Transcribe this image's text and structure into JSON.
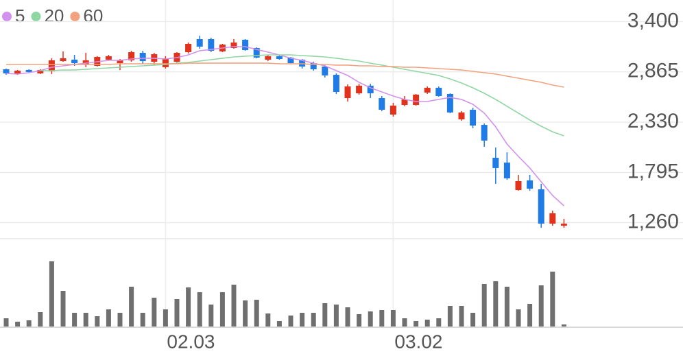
{
  "chart_data": {
    "type": "candlestick",
    "categories": [
      null,
      null,
      null,
      null,
      null,
      null,
      null,
      null,
      null,
      null,
      null,
      null,
      null,
      null,
      "02.03",
      null,
      null,
      null,
      null,
      null,
      null,
      null,
      null,
      null,
      null,
      null,
      null,
      null,
      null,
      null,
      null,
      null,
      null,
      null,
      "03.02",
      null,
      null,
      null,
      null,
      null,
      null,
      null,
      null,
      null,
      null,
      null,
      null,
      null,
      null,
      null
    ],
    "open": [
      2893,
      2842,
      2886,
      2849,
      2871,
      2980,
      2995,
      2944,
      2929,
      2995,
      2958,
      2988,
      3068,
      2973,
      2915,
      2973,
      3075,
      3214,
      3214,
      3083,
      3119,
      3207,
      3119,
      2995,
      3032,
      3017,
      2995,
      2958,
      2922,
      2834,
      2586,
      2637,
      2718,
      2586,
      2411,
      2513,
      2513,
      2645,
      2696,
      2630,
      2360,
      2462,
      2301,
      1951,
      1900,
      1608,
      1710,
      1615,
      1250,
      1228
    ],
    "high": [
      2900,
      2886,
      2893,
      2893,
      3010,
      3083,
      3046,
      3068,
      3032,
      3046,
      3002,
      3090,
      3090,
      3068,
      3032,
      3075,
      3177,
      3250,
      3228,
      3163,
      3214,
      3214,
      3126,
      3046,
      3039,
      3024,
      3002,
      2973,
      2937,
      2849,
      2732,
      2739,
      2739,
      2608,
      2535,
      2608,
      2630,
      2710,
      2710,
      2637,
      2447,
      2484,
      2316,
      2060,
      2009,
      1769,
      1769,
      1674,
      1389,
      1301
    ],
    "low": [
      2834,
      2834,
      2856,
      2842,
      2842,
      2973,
      2929,
      2915,
      2922,
      2988,
      2885,
      2973,
      2951,
      2937,
      2900,
      2966,
      3061,
      3112,
      3075,
      3075,
      3112,
      3090,
      3010,
      2980,
      2995,
      2951,
      2900,
      2878,
      2805,
      2630,
      2550,
      2623,
      2586,
      2447,
      2389,
      2498,
      2506,
      2630,
      2601,
      2425,
      2345,
      2265,
      2068,
      1674,
      1717,
      1601,
      1601,
      1206,
      1228,
      1206
    ],
    "close": [
      2849,
      2878,
      2864,
      2886,
      2988,
      3010,
      2958,
      2988,
      3024,
      3032,
      2988,
      3075,
      2980,
      3053,
      3010,
      3068,
      3163,
      3134,
      3090,
      3156,
      3177,
      3097,
      3017,
      3032,
      3002,
      2958,
      2922,
      2893,
      2827,
      2652,
      2710,
      2718,
      2637,
      2462,
      2506,
      2572,
      2623,
      2696,
      2608,
      2433,
      2433,
      2294,
      2134,
      1842,
      1732,
      1703,
      1622,
      1250,
      1360,
      1250
    ],
    "up_color": "#e2321c",
    "down_color": "#1f7be6",
    "series": [
      {
        "name": "5",
        "color": "#d291ee",
        "values": [
          2849,
          2842,
          2856,
          2878,
          2915,
          2929,
          2944,
          2958,
          2973,
          2988,
          2988,
          3002,
          3010,
          3010,
          3002,
          3017,
          3046,
          3090,
          3104,
          3119,
          3134,
          3134,
          3104,
          3075,
          3046,
          3010,
          2988,
          2958,
          2929,
          2878,
          2827,
          2754,
          2696,
          2652,
          2608,
          2572,
          2550,
          2550,
          2572,
          2593,
          2572,
          2520,
          2426,
          2280,
          2097,
          1966,
          1842,
          1696,
          1550,
          1440
        ]
      },
      {
        "name": "20",
        "color": "#8fd6a2",
        "values": [
          null,
          null,
          null,
          2878,
          2878,
          2885,
          2885,
          2893,
          2900,
          2907,
          2915,
          2922,
          2929,
          2937,
          2944,
          2958,
          2966,
          2980,
          2995,
          3010,
          3024,
          3032,
          3039,
          3046,
          3046,
          3046,
          3039,
          3032,
          3024,
          3010,
          2995,
          2980,
          2958,
          2937,
          2915,
          2893,
          2871,
          2849,
          2827,
          2790,
          2747,
          2696,
          2637,
          2572,
          2499,
          2426,
          2353,
          2287,
          2228,
          2185
        ]
      },
      {
        "name": "60",
        "color": "#f2a27e",
        "values": [
          2944,
          2944,
          2944,
          2944,
          2944,
          2944,
          2944,
          2944,
          2944,
          2944,
          2951,
          2951,
          2951,
          2951,
          2951,
          2951,
          2958,
          2958,
          2958,
          2958,
          2958,
          2958,
          2958,
          2958,
          2951,
          2951,
          2951,
          2944,
          2944,
          2937,
          2937,
          2929,
          2929,
          2922,
          2922,
          2915,
          2915,
          2907,
          2900,
          2893,
          2885,
          2871,
          2856,
          2842,
          2820,
          2798,
          2776,
          2754,
          2725,
          2703
        ]
      }
    ],
    "ylim": [
      1100,
      3630
    ],
    "yticks": [
      {
        "value": 3400,
        "label": "3,400"
      },
      {
        "value": 2865,
        "label": "2,865"
      },
      {
        "value": 2330,
        "label": "2,330"
      },
      {
        "value": 1795,
        "label": "1,795"
      },
      {
        "value": 1260,
        "label": "1,260"
      }
    ],
    "grid": true,
    "volume": {
      "color": "#6f6f6f",
      "ylim": [
        0,
        120
      ],
      "values": [
        12,
        7,
        9,
        21,
        95,
        52,
        20,
        20,
        15,
        25,
        20,
        58,
        20,
        42,
        25,
        40,
        57,
        50,
        32,
        50,
        61,
        38,
        39,
        19,
        8,
        16,
        20,
        20,
        34,
        32,
        28,
        18,
        22,
        24,
        24,
        12,
        8,
        10,
        12,
        30,
        30,
        20,
        62,
        66,
        58,
        25,
        33,
        60,
        80,
        3
      ]
    }
  }
}
